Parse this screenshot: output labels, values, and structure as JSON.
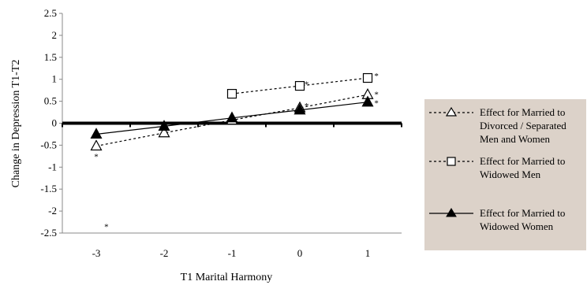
{
  "chart_data": {
    "type": "line",
    "xlabel": "T1 Marital Harmony",
    "ylabel": "Change in Depression T1-T2",
    "x_ticks": [
      "-3",
      "-2",
      "-1",
      "0",
      "1"
    ],
    "y_ticks": [
      "2.5",
      "2",
      "1.5",
      "1",
      "0.5",
      "0",
      "-0.5",
      "-1",
      "-1.5",
      "-2",
      "-2.5"
    ],
    "xlim": [
      -3.5,
      1.5
    ],
    "ylim": [
      -2.5,
      2.5
    ],
    "legend_position": "right",
    "series": [
      {
        "name": "Effect for Married to Divorced / Separated Men and Women",
        "marker": "open-triangle",
        "line": "dotted",
        "x": [
          -3,
          -2,
          -1,
          0,
          1
        ],
        "y": [
          -0.52,
          -0.22,
          0.07,
          0.35,
          0.65
        ]
      },
      {
        "name": "Effect for Married to Widowed Men",
        "marker": "open-square",
        "line": "dotted",
        "x": [
          -1,
          0,
          1
        ],
        "y": [
          0.67,
          0.85,
          1.03
        ]
      },
      {
        "name": "Effect for Married to Widowed Women",
        "marker": "filled-triangle",
        "line": "solid",
        "x": [
          -3,
          -2,
          -1,
          0,
          1
        ],
        "y": [
          -0.25,
          -0.07,
          0.12,
          0.3,
          0.48
        ]
      }
    ],
    "annotations": [
      {
        "text": "*",
        "x": -3,
        "y": -0.75
      },
      {
        "text": "*",
        "x": 0.1,
        "y": 0.4
      },
      {
        "text": "*",
        "x": 0.1,
        "y": 0.9
      },
      {
        "text": "*",
        "x": 1.13,
        "y": 1.08
      },
      {
        "text": "*",
        "x": 1.13,
        "y": 0.66
      },
      {
        "text": "*",
        "x": 1.13,
        "y": 0.47
      },
      {
        "text": "*",
        "x": -2.85,
        "y": -2.35
      }
    ]
  }
}
